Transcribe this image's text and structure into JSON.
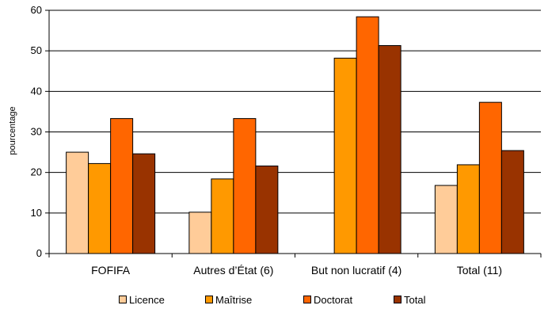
{
  "chart_data": {
    "type": "bar",
    "title": "",
    "xlabel": "",
    "ylabel": "pourcentage",
    "ylim": [
      0,
      60
    ],
    "yticks": [
      0,
      10,
      20,
      30,
      40,
      50,
      60
    ],
    "grid": true,
    "legend_position": "bottom",
    "categories": [
      "FOFIFA",
      "Autres d’État (6)",
      "But non lucratif (4)",
      "Total (11)"
    ],
    "series": [
      {
        "name": "Licence",
        "color": "#FFCC99",
        "values": [
          25.0,
          10.2,
          0,
          16.8
        ]
      },
      {
        "name": "Maîtrise",
        "color": "#FF9900",
        "values": [
          22.2,
          18.4,
          48.2,
          21.9
        ]
      },
      {
        "name": "Doctorat",
        "color": "#FF6600",
        "values": [
          33.3,
          33.3,
          58.4,
          37.3
        ]
      },
      {
        "name": "Total",
        "color": "#993300",
        "values": [
          24.6,
          21.6,
          51.3,
          25.4
        ]
      }
    ]
  }
}
